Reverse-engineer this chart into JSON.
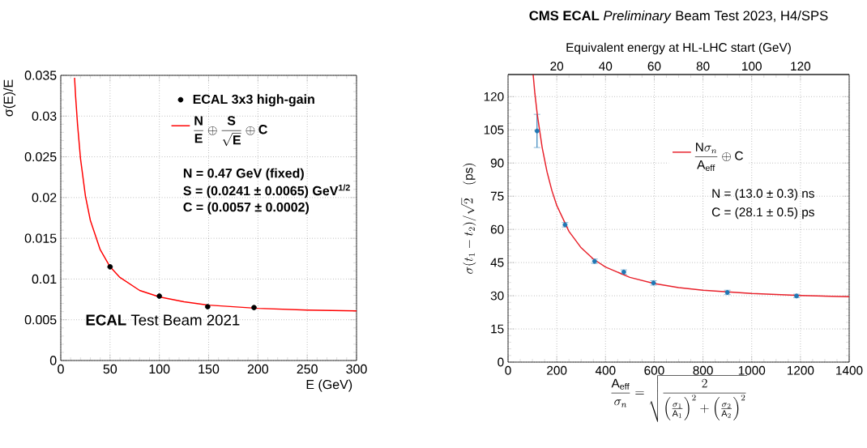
{
  "chart_data": [
    {
      "type": "scatter",
      "xlabel": "E (GeV)",
      "ylabel": "σ(E)/E",
      "xlim": [
        0,
        300
      ],
      "ylim": [
        0,
        0.035
      ],
      "xticks": [
        0,
        50,
        100,
        150,
        200,
        250,
        300
      ],
      "yticks": [
        0,
        0.005,
        0.01,
        0.015,
        0.02,
        0.025,
        0.03,
        0.035
      ],
      "grid": true,
      "legend": "top right",
      "series": [
        {
          "name": "ECAL 3x3 high-gain",
          "color": "#000000",
          "x": [
            50,
            100,
            149,
            196
          ],
          "values": [
            0.0115,
            0.0079,
            0.0066,
            0.0065
          ]
        },
        {
          "type": "line",
          "name": "\\frac{\\mathbf{N}}{\\mathbf{E}}\\oplus\\frac{\\mathbf{S}}{\\sqrt{\\mathbf{E}}}\\oplus\\mathbf{C}",
          "color": "#ff0000",
          "x": [
            14,
            15,
            17,
            20,
            25,
            30,
            40,
            50,
            60,
            80,
            100,
            125,
            150,
            200,
            250,
            300
          ],
          "values": [
            0.0347,
            0.0325,
            0.029,
            0.0248,
            0.0202,
            0.0172,
            0.0136,
            0.0115,
            0.0102,
            0.0086,
            0.0078,
            0.0072,
            0.0068,
            0.0064,
            0.0062,
            0.0061
          ]
        }
      ],
      "annotations": [
        "N = 0.47 GeV (fixed)",
        "S = (0.0241 ± 0.0065) GeV$^{1/2}$",
        "C = (0.0057 ± 0.0002)",
        "**ECAL** Test Beam 2021"
      ]
    },
    {
      "type": "scatter",
      "title": "**CMS ECAL** *Preliminary* Beam Test 2023, H4/SPS",
      "x2label": "Equivalent energy at HL-LHC start (GeV)",
      "xlabel": "\\frac{\\mathrm{A_{eff}}}{\\sigma_n}=\\sqrt{\\frac{2}{\\left(\\frac{\\sigma_1}{\\mathrm{A}_1}\\right)^2+\\left(\\frac{\\sigma_2}{\\mathrm{A}_2}\\right)^2}}",
      "ylabel": "\\sigma(t_1-t_2)/\\sqrt{2}\\quad(\\mathrm{ps})",
      "xlim": [
        0,
        1400
      ],
      "ylim": [
        0,
        130
      ],
      "xticks": [
        0,
        200,
        400,
        600,
        800,
        1000,
        1200,
        1400
      ],
      "yticks": [
        0,
        15,
        30,
        45,
        60,
        75,
        90,
        105,
        120
      ],
      "x2lim": [
        0,
        140
      ],
      "x2ticks": [
        20,
        40,
        60,
        80,
        100,
        120
      ],
      "grid": true,
      "legend": "right",
      "series": [
        {
          "color": "#1f77b4",
          "x": [
            119,
            234,
            355,
            475,
            597,
            900,
            1184
          ],
          "values": [
            104.5,
            62.1,
            45.6,
            40.7,
            35.8,
            31.5,
            29.9
          ],
          "errors": [
            7.5,
            1,
            1,
            1,
            1,
            1,
            0.8
          ]
        },
        {
          "type": "line",
          "name": "\\frac{\\mathrm{N}\\sigma_n}{\\mathrm{A_{eff}}}\\oplus\\mathrm{C}",
          "color": "#e8202a",
          "x": [
            103,
            110,
            120,
            140,
            160,
            180,
            200,
            250,
            300,
            350,
            400,
            500,
            600,
            700,
            800,
            1000,
            1200,
            1400
          ],
          "values": [
            130,
            121.5,
            111.9,
            97,
            86,
            77.5,
            70.8,
            59.1,
            51.7,
            46.6,
            43,
            38.3,
            35.5,
            33.7,
            32.5,
            31,
            30.1,
            29.6
          ]
        }
      ],
      "annotations": [
        "N = (13.0 ± 0.3) ns",
        "C = (28.1 ± 0.5) ps"
      ]
    }
  ]
}
